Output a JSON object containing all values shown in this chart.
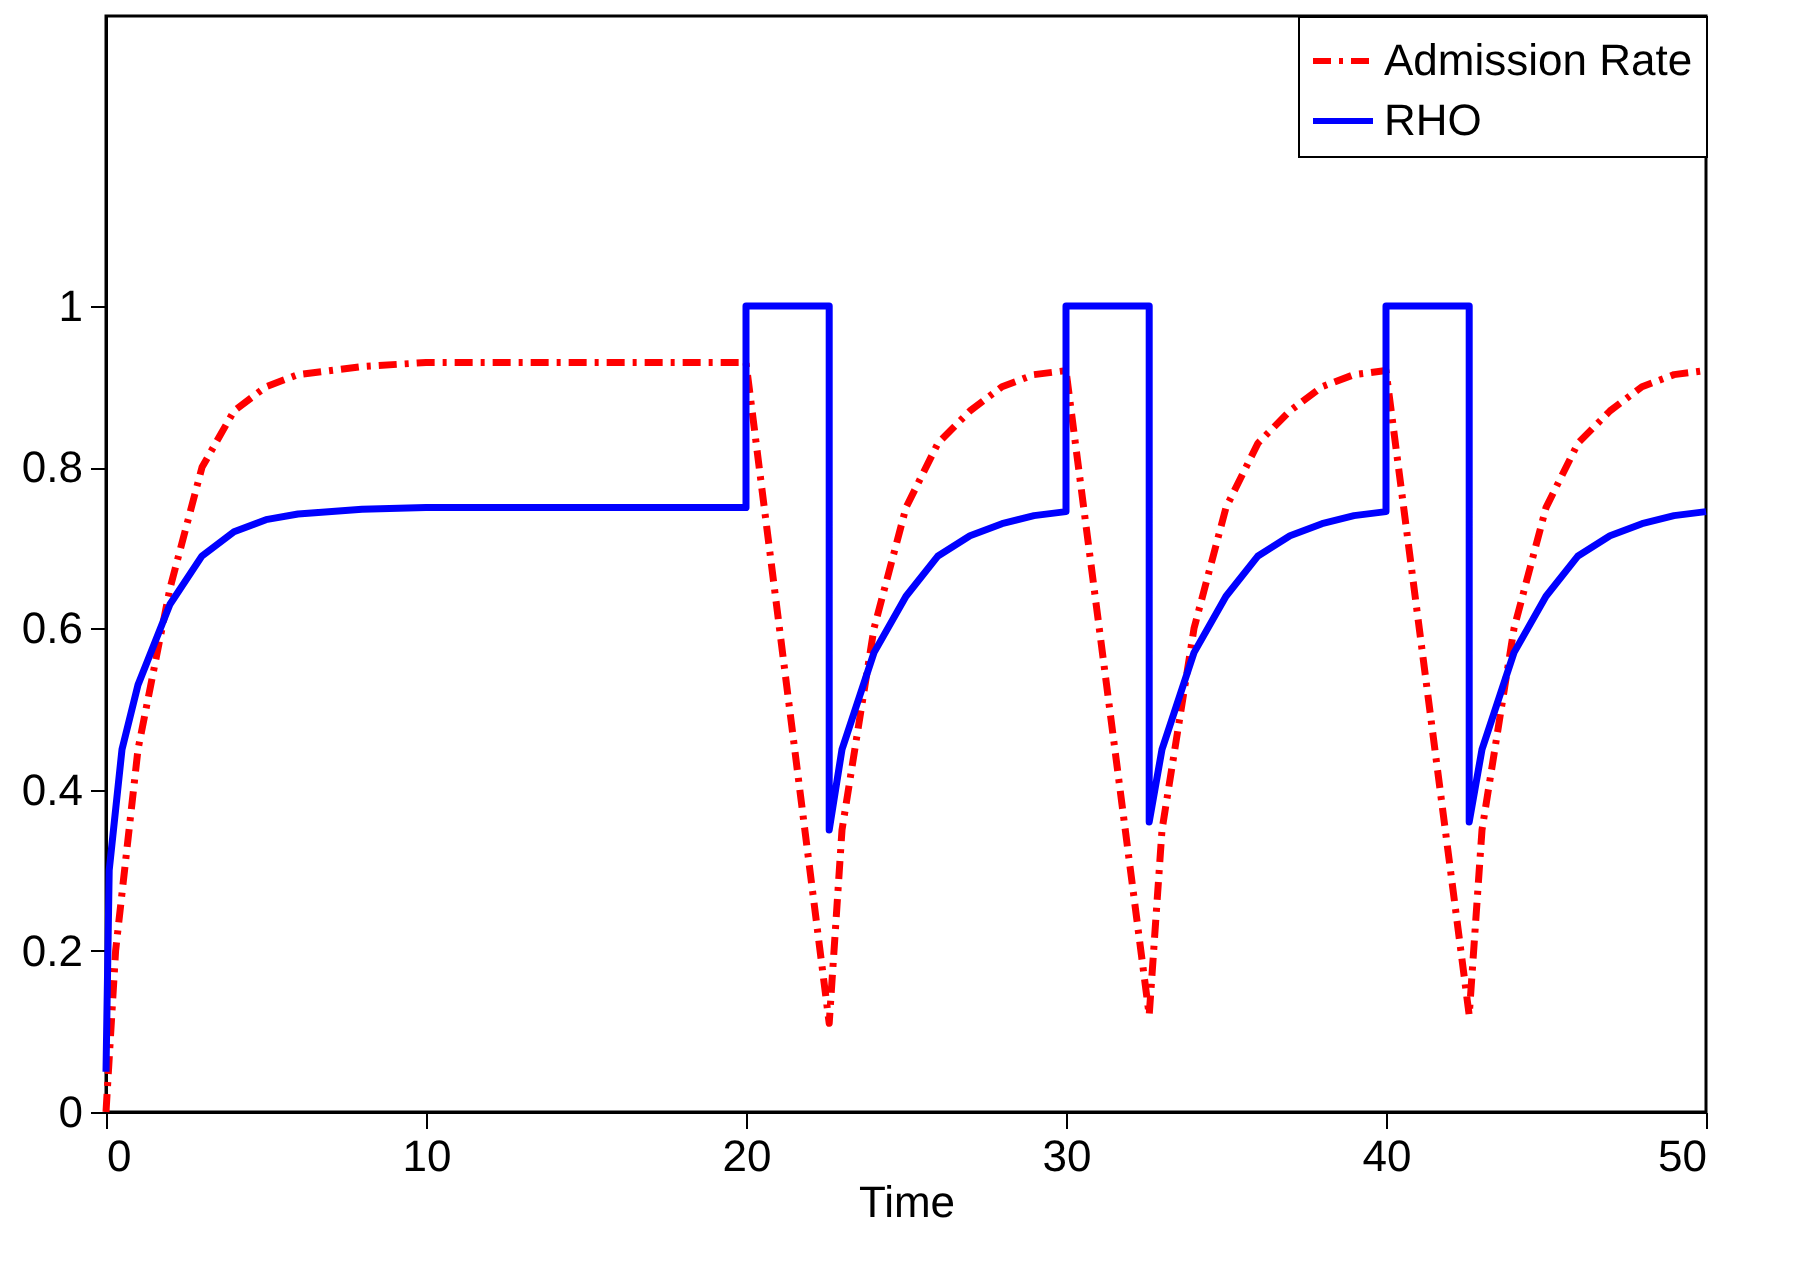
{
  "chart_data": {
    "type": "line",
    "xlabel": "Time",
    "xlim": [
      0,
      50
    ],
    "xticks": [
      0,
      10,
      20,
      30,
      40,
      50
    ],
    "ylim": [
      0,
      1.36
    ],
    "yticks": [
      0,
      0.2,
      0.4,
      0.6,
      0.8,
      1
    ],
    "grid": false,
    "legend": "top right",
    "marker": "none",
    "series": [
      {
        "name": "Admission Rate",
        "color": "#ff0000",
        "line_style": "dashed",
        "x": [
          0,
          0.3,
          1,
          2,
          3,
          4,
          5,
          6,
          8,
          10,
          20,
          22.6,
          23,
          24,
          25,
          26,
          27,
          28,
          29,
          30,
          32.6,
          33,
          34,
          35,
          36,
          37,
          38,
          39,
          40,
          42.6,
          43,
          44,
          45,
          46,
          47,
          48,
          49,
          50
        ],
        "values": [
          0,
          0.2,
          0.45,
          0.65,
          0.8,
          0.87,
          0.9,
          0.915,
          0.925,
          0.93,
          0.93,
          0.11,
          0.35,
          0.6,
          0.75,
          0.83,
          0.87,
          0.9,
          0.915,
          0.92,
          0.12,
          0.35,
          0.6,
          0.75,
          0.83,
          0.87,
          0.9,
          0.915,
          0.92,
          0.12,
          0.35,
          0.6,
          0.75,
          0.83,
          0.87,
          0.9,
          0.915,
          0.92
        ]
      },
      {
        "name": "RHO",
        "color": "#0000ff",
        "line_style": "solid",
        "x": [
          0,
          0.1,
          0.5,
          1,
          2,
          3,
          4,
          5,
          6,
          8,
          10,
          20,
          20,
          22.6,
          22.6,
          23,
          24,
          25,
          26,
          27,
          28,
          29,
          30,
          30,
          32.6,
          32.6,
          33,
          34,
          35,
          36,
          37,
          38,
          39,
          40,
          40,
          42.6,
          42.6,
          43,
          44,
          45,
          46,
          47,
          48,
          49,
          50
        ],
        "values": [
          0.05,
          0.3,
          0.45,
          0.53,
          0.63,
          0.69,
          0.72,
          0.735,
          0.742,
          0.748,
          0.75,
          0.75,
          1,
          1,
          0.35,
          0.45,
          0.57,
          0.64,
          0.69,
          0.715,
          0.73,
          0.74,
          0.745,
          1,
          1,
          0.36,
          0.45,
          0.57,
          0.64,
          0.69,
          0.715,
          0.73,
          0.74,
          0.745,
          1,
          1,
          0.36,
          0.45,
          0.57,
          0.64,
          0.69,
          0.715,
          0.73,
          0.74,
          0.745
        ]
      }
    ]
  }
}
